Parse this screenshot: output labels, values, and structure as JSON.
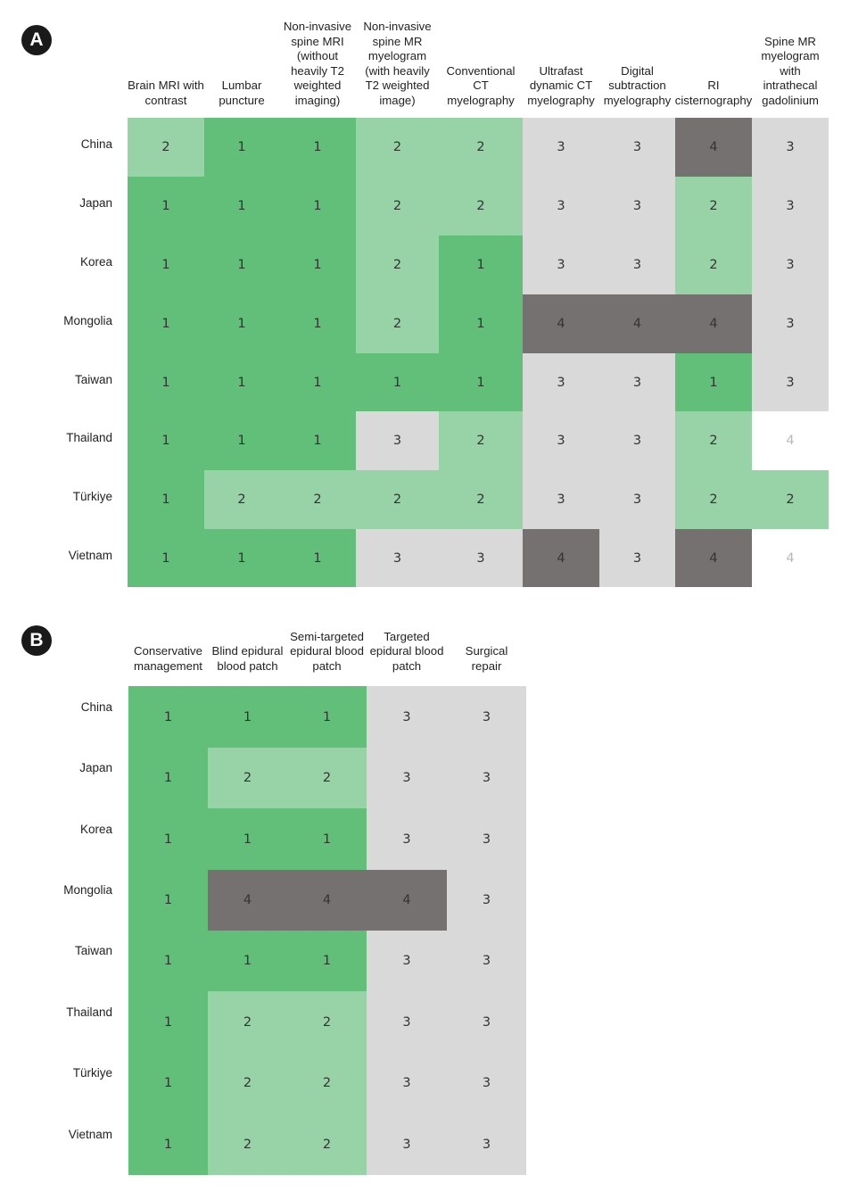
{
  "chart_data": [
    {
      "type": "heatmap",
      "panel_label": "A",
      "columns": [
        "Brain MRI with contrast",
        "Lumbar puncture",
        "Non-invasive spine MRI (without heavily T2 weighted imaging)",
        "Non-invasive spine MR myelogram (with heavily T2 weighted image)",
        "Conventional CT myelography",
        "Ultrafast dynamic CT myelography",
        "Digital subtraction myelography",
        "RI cisternography",
        "Spine MR myelogram with intrathecal gadolinium"
      ],
      "column_lines": [
        [
          "Brain MRI with",
          "contrast"
        ],
        [
          "Lumbar",
          "puncture"
        ],
        [
          "Non-invasive",
          "spine MRI",
          "(without",
          "heavily T2",
          "weighted",
          "imaging)"
        ],
        [
          "Non-invasive",
          "spine MR",
          "myelogram",
          "(with heavily",
          "T2 weighted",
          "image)"
        ],
        [
          "Conventional",
          "CT",
          "myelography"
        ],
        [
          "Ultrafast",
          "dynamic CT",
          "myelography"
        ],
        [
          "Digital",
          "subtraction",
          "myelography"
        ],
        [
          "RI",
          "cisternography"
        ],
        [
          "Spine MR",
          "myelogram",
          "with",
          "intrathecal",
          "gadolinium"
        ]
      ],
      "rows": [
        "China",
        "Japan",
        "Korea",
        "Mongolia",
        "Taiwan",
        "Thailand",
        "Türkiye",
        "Vietnam"
      ],
      "values": [
        [
          2,
          1,
          1,
          2,
          2,
          3,
          3,
          4,
          3
        ],
        [
          1,
          1,
          1,
          2,
          2,
          3,
          3,
          2,
          3
        ],
        [
          1,
          1,
          1,
          2,
          1,
          3,
          3,
          2,
          3
        ],
        [
          1,
          1,
          1,
          2,
          1,
          4,
          4,
          4,
          3
        ],
        [
          1,
          1,
          1,
          1,
          1,
          3,
          3,
          1,
          3
        ],
        [
          1,
          1,
          1,
          3,
          2,
          3,
          3,
          2,
          4
        ],
        [
          1,
          2,
          2,
          2,
          2,
          3,
          3,
          2,
          2
        ],
        [
          1,
          1,
          1,
          3,
          3,
          4,
          3,
          4,
          4
        ]
      ],
      "unfilled_cells": [
        [
          5,
          8
        ],
        [
          7,
          8
        ]
      ]
    },
    {
      "type": "heatmap",
      "panel_label": "B",
      "columns": [
        "Conservative management",
        "Blind epidural blood patch",
        "Semi-targeted epidural blood patch",
        "Targeted epidural blood patch",
        "Surgical repair"
      ],
      "column_lines": [
        [
          "Conservative",
          "management"
        ],
        [
          "Blind epidural",
          "blood patch"
        ],
        [
          "Semi-targeted",
          "epidural blood",
          "patch"
        ],
        [
          "Targeted",
          "epidural blood",
          "patch"
        ],
        [
          "Surgical",
          "repair"
        ]
      ],
      "rows": [
        "China",
        "Japan",
        "Korea",
        "Mongolia",
        "Taiwan",
        "Thailand",
        "Türkiye",
        "Vietnam"
      ],
      "values": [
        [
          1,
          1,
          1,
          3,
          3
        ],
        [
          1,
          2,
          2,
          3,
          3
        ],
        [
          1,
          1,
          1,
          3,
          3
        ],
        [
          1,
          4,
          4,
          4,
          3
        ],
        [
          1,
          1,
          1,
          3,
          3
        ],
        [
          1,
          2,
          2,
          3,
          3
        ],
        [
          1,
          2,
          2,
          3,
          3
        ],
        [
          1,
          2,
          2,
          3,
          3
        ]
      ],
      "unfilled_cells": []
    }
  ],
  "colors": {
    "score_1": "#62bf7a",
    "score_2": "#98d2a7",
    "score_3": "#d9d9d9",
    "score_4": "#767171",
    "unfilled_text": "#b8b8b8"
  }
}
